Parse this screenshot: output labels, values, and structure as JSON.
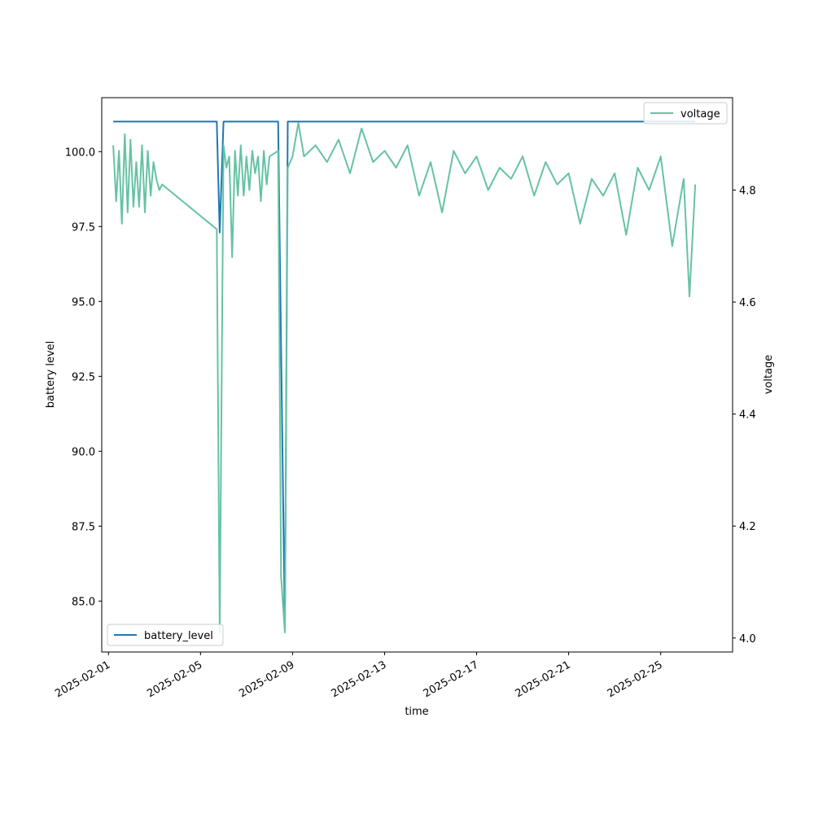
{
  "chart_data": {
    "type": "line",
    "title": "",
    "xlabel": "time",
    "ylabel_left": "battery level",
    "ylabel_right": "voltage",
    "xlim": [
      "2025-01-31T17:00",
      "2025-02-28T03:00"
    ],
    "ylim_left": [
      83.3,
      101.8
    ],
    "ylim_right": [
      3.975,
      4.965
    ],
    "x_ticks": [
      "2025-02-01",
      "2025-02-05",
      "2025-02-09",
      "2025-02-13",
      "2025-02-17",
      "2025-02-21",
      "2025-02-25"
    ],
    "y_left_ticks": [
      85.0,
      87.5,
      90.0,
      92.5,
      95.0,
      97.5,
      100.0
    ],
    "y_left_tick_labels": [
      "85.0",
      "87.5",
      "90.0",
      "92.5",
      "95.0",
      "97.5",
      "100.0"
    ],
    "y_right_ticks": [
      4.0,
      4.2,
      4.4,
      4.6,
      4.8
    ],
    "y_right_tick_labels": [
      "4.0",
      "4.2",
      "4.4",
      "4.6",
      "4.8"
    ],
    "grid": false,
    "series": [
      {
        "name": "battery_level",
        "axis": "left",
        "color": "#1f77b4",
        "legend_position": "lower-left",
        "x": [
          "2025-02-01T05:00",
          "2025-02-05T17:00",
          "2025-02-05T20:00",
          "2025-02-06T00:00",
          "2025-02-08T09:00",
          "2025-02-08T12:00",
          "2025-02-08T16:00",
          "2025-02-08T19:00",
          "2025-02-26T12:00"
        ],
        "values": [
          101.0,
          101.0,
          97.3,
          101.0,
          101.0,
          93.5,
          84.0,
          101.0,
          101.0
        ]
      },
      {
        "name": "voltage",
        "axis": "right",
        "color": "#66c2a5",
        "legend_position": "upper-right",
        "x": [
          "2025-02-01T05:00",
          "2025-02-01T08:00",
          "2025-02-01T11:00",
          "2025-02-01T14:00",
          "2025-02-01T17:00",
          "2025-02-01T20:00",
          "2025-02-01T23:00",
          "2025-02-02T02:00",
          "2025-02-02T05:00",
          "2025-02-02T08:00",
          "2025-02-02T11:00",
          "2025-02-02T14:00",
          "2025-02-02T17:00",
          "2025-02-02T20:00",
          "2025-02-02T23:00",
          "2025-02-03T02:00",
          "2025-02-03T05:00",
          "2025-02-03T08:00",
          "2025-02-05T17:00",
          "2025-02-05T20:00",
          "2025-02-06T00:00",
          "2025-02-06T03:00",
          "2025-02-06T06:00",
          "2025-02-06T09:00",
          "2025-02-06T12:00",
          "2025-02-06T15:00",
          "2025-02-06T18:00",
          "2025-02-06T21:00",
          "2025-02-07T00:00",
          "2025-02-07T03:00",
          "2025-02-07T06:00",
          "2025-02-07T09:00",
          "2025-02-07T12:00",
          "2025-02-07T15:00",
          "2025-02-07T18:00",
          "2025-02-07T21:00",
          "2025-02-08T00:00",
          "2025-02-08T09:00",
          "2025-02-08T12:00",
          "2025-02-08T16:00",
          "2025-02-08T19:00",
          "2025-02-09T00:00",
          "2025-02-09T06:00",
          "2025-02-09T12:00",
          "2025-02-10T00:00",
          "2025-02-10T12:00",
          "2025-02-11T00:00",
          "2025-02-11T12:00",
          "2025-02-12T00:00",
          "2025-02-12T12:00",
          "2025-02-13T00:00",
          "2025-02-13T12:00",
          "2025-02-14T00:00",
          "2025-02-14T12:00",
          "2025-02-15T00:00",
          "2025-02-15T12:00",
          "2025-02-16T00:00",
          "2025-02-16T12:00",
          "2025-02-17T00:00",
          "2025-02-17T12:00",
          "2025-02-18T00:00",
          "2025-02-18T12:00",
          "2025-02-19T00:00",
          "2025-02-19T12:00",
          "2025-02-20T00:00",
          "2025-02-20T12:00",
          "2025-02-21T00:00",
          "2025-02-21T12:00",
          "2025-02-22T00:00",
          "2025-02-22T12:00",
          "2025-02-23T00:00",
          "2025-02-23T12:00",
          "2025-02-24T00:00",
          "2025-02-24T12:00",
          "2025-02-25T00:00",
          "2025-02-25T12:00",
          "2025-02-26T00:00",
          "2025-02-26T06:00",
          "2025-02-26T12:00"
        ],
        "values": [
          4.88,
          4.78,
          4.87,
          4.74,
          4.9,
          4.76,
          4.89,
          4.77,
          4.85,
          4.77,
          4.88,
          4.76,
          4.87,
          4.79,
          4.85,
          4.82,
          4.8,
          4.81,
          4.73,
          4.01,
          4.88,
          4.84,
          4.86,
          4.68,
          4.87,
          4.79,
          4.88,
          4.79,
          4.86,
          4.8,
          4.87,
          4.83,
          4.86,
          4.78,
          4.87,
          4.81,
          4.86,
          4.87,
          4.11,
          4.01,
          4.84,
          4.86,
          4.92,
          4.86,
          4.88,
          4.85,
          4.89,
          4.83,
          4.91,
          4.85,
          4.87,
          4.84,
          4.88,
          4.79,
          4.85,
          4.76,
          4.87,
          4.83,
          4.86,
          4.8,
          4.84,
          4.82,
          4.86,
          4.79,
          4.85,
          4.81,
          4.83,
          4.74,
          4.82,
          4.79,
          4.83,
          4.72,
          4.84,
          4.8,
          4.86,
          4.7,
          4.82,
          4.61,
          4.81
        ]
      }
    ]
  }
}
